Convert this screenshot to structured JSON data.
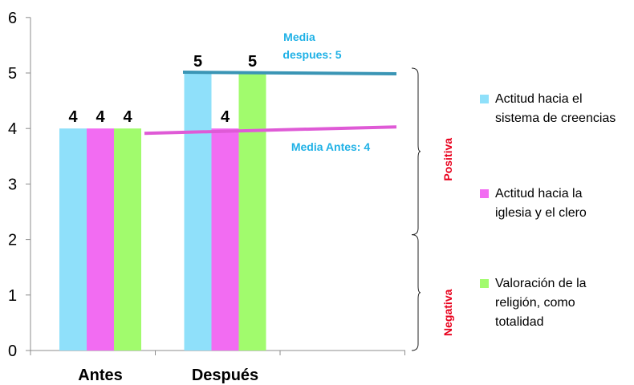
{
  "chart_data": {
    "type": "bar",
    "categories": [
      "Antes",
      "Después"
    ],
    "series": [
      {
        "name": "Actitud hacia el sistema de creencias",
        "color": "#8fe0fa",
        "values": [
          4,
          5
        ]
      },
      {
        "name": "Actitud hacia la iglesia y el clero",
        "color": "#f26cf2",
        "values": [
          4,
          4
        ]
      },
      {
        "name": "Valoración de la religión, como totalidad",
        "color": "#a1fb6d",
        "values": [
          4,
          5
        ]
      }
    ],
    "ylim": [
      0,
      6
    ],
    "yticks": [
      "0",
      "1",
      "2",
      "3",
      "4",
      "5",
      "6"
    ],
    "grid": false,
    "legend_position": "right",
    "mean_lines": [
      {
        "label_lines": [
          "Media",
          "despues: 5"
        ],
        "value": 5,
        "color": "#3a95b5"
      },
      {
        "label_lines": [
          "Media Antes: 4"
        ],
        "value": 4,
        "color": "#df5ad6"
      }
    ],
    "brackets": [
      {
        "label": "Positiva",
        "range": [
          2,
          5
        ]
      },
      {
        "label": "Negativa",
        "range": [
          0,
          2
        ]
      }
    ]
  },
  "legend": {
    "items": [
      {
        "lines": [
          "Actitud hacia el",
          "sistema de creencias"
        ],
        "color": "#8fe0fa"
      },
      {
        "lines": [
          "Actitud hacia la",
          "iglesia y el clero"
        ],
        "color": "#f26cf2"
      },
      {
        "lines": [
          "Valoración de la",
          "religión, como",
          "totalidad"
        ],
        "color": "#a1fb6d"
      }
    ]
  }
}
